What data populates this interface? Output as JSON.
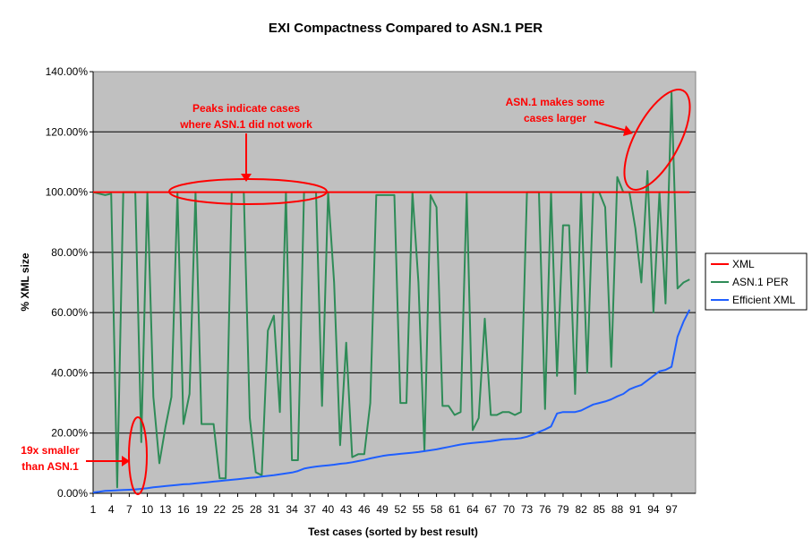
{
  "chart_data": {
    "type": "line",
    "title": "EXI Compactness Compared to ASN.1 PER",
    "xlabel": "Test cases (sorted by best result)",
    "ylabel": "% XML size",
    "ylim": [
      0,
      140
    ],
    "xlim": [
      1,
      100
    ],
    "y_ticks": [
      "0.00%",
      "20.00%",
      "40.00%",
      "60.00%",
      "80.00%",
      "100.00%",
      "120.00%",
      "140.00%"
    ],
    "x_ticks": [
      "1",
      "4",
      "7",
      "10",
      "13",
      "16",
      "19",
      "22",
      "25",
      "28",
      "31",
      "34",
      "37",
      "40",
      "43",
      "46",
      "49",
      "52",
      "55",
      "58",
      "61",
      "64",
      "67",
      "70",
      "73",
      "76",
      "79",
      "82",
      "85",
      "88",
      "91",
      "94",
      "97"
    ],
    "grid": true,
    "legend_position": "right",
    "series": [
      {
        "name": "XML",
        "color": "#ff0000",
        "values": [
          100,
          100,
          100,
          100,
          100,
          100,
          100,
          100,
          100,
          100,
          100,
          100,
          100,
          100,
          100,
          100,
          100,
          100,
          100,
          100,
          100,
          100,
          100,
          100,
          100,
          100,
          100,
          100,
          100,
          100,
          100,
          100,
          100,
          100,
          100,
          100,
          100,
          100,
          100,
          100,
          100,
          100,
          100,
          100,
          100,
          100,
          100,
          100,
          100,
          100,
          100,
          100,
          100,
          100,
          100,
          100,
          100,
          100,
          100,
          100,
          100,
          100,
          100,
          100,
          100,
          100,
          100,
          100,
          100,
          100,
          100,
          100,
          100,
          100,
          100,
          100,
          100,
          100,
          100,
          100,
          100,
          100,
          100,
          100,
          100,
          100,
          100,
          100,
          100,
          100,
          100,
          100,
          100,
          100,
          100,
          100,
          100,
          100,
          100,
          100
        ]
      },
      {
        "name": "ASN.1 PER",
        "color": "#2e8b57",
        "values": [
          100,
          99.5,
          99,
          99.5,
          2,
          100,
          100,
          100,
          17,
          100,
          32,
          10,
          22,
          32,
          100,
          23,
          33,
          100,
          23,
          23,
          23,
          5,
          5,
          100,
          100,
          100,
          25,
          7,
          6,
          54,
          59,
          27,
          100,
          11,
          11,
          100,
          100,
          100,
          29,
          100,
          70,
          16,
          50,
          12,
          13,
          13,
          30,
          99,
          99,
          99,
          99,
          30,
          30,
          100,
          70,
          14,
          99,
          95,
          29,
          29,
          26,
          27,
          100,
          21,
          25,
          58,
          26,
          26,
          27,
          27,
          26,
          27,
          100,
          100,
          100,
          28,
          100,
          39,
          89,
          89,
          33,
          100,
          40,
          100,
          100,
          95,
          42,
          105,
          100,
          100,
          88,
          70,
          107,
          60,
          100,
          63,
          133,
          68,
          70,
          71
        ]
      },
      {
        "name": "Efficient XML",
        "color": "#1f5fff",
        "values": [
          0.3,
          0.5,
          0.8,
          0.9,
          1,
          1.1,
          1.2,
          1.3,
          1.5,
          1.7,
          2,
          2.2,
          2.4,
          2.6,
          2.8,
          3,
          3.1,
          3.3,
          3.5,
          3.7,
          3.9,
          4.1,
          4.3,
          4.5,
          4.7,
          4.9,
          5.1,
          5.3,
          5.6,
          5.8,
          6,
          6.3,
          6.6,
          6.9,
          7.4,
          8.2,
          8.6,
          8.9,
          9.1,
          9.3,
          9.5,
          9.8,
          10,
          10.3,
          10.7,
          11.1,
          11.6,
          12,
          12.4,
          12.7,
          12.9,
          13.1,
          13.3,
          13.5,
          13.7,
          14,
          14.3,
          14.6,
          15,
          15.4,
          15.8,
          16.2,
          16.5,
          16.7,
          16.9,
          17.1,
          17.3,
          17.6,
          17.9,
          18,
          18.1,
          18.3,
          18.8,
          19.5,
          20.4,
          21.2,
          22.2,
          26.5,
          27,
          27,
          27,
          27.5,
          28.5,
          29.5,
          30,
          30.5,
          31.2,
          32.2,
          33,
          34.5,
          35.3,
          36,
          37.5,
          39,
          40.5,
          41,
          42,
          52,
          57,
          61
        ]
      }
    ],
    "annotations": [
      {
        "line1": "Peaks indicate cases",
        "line2": "where ASN.1 did not work"
      },
      {
        "line1": "ASN.1 makes some",
        "line2": "cases larger"
      },
      {
        "line1": "19x smaller",
        "line2": "than ASN.1"
      }
    ],
    "colors": {
      "plot_bg": "#c0c0c0",
      "annotation": "#ff0000",
      "gridline": "#000000"
    }
  }
}
